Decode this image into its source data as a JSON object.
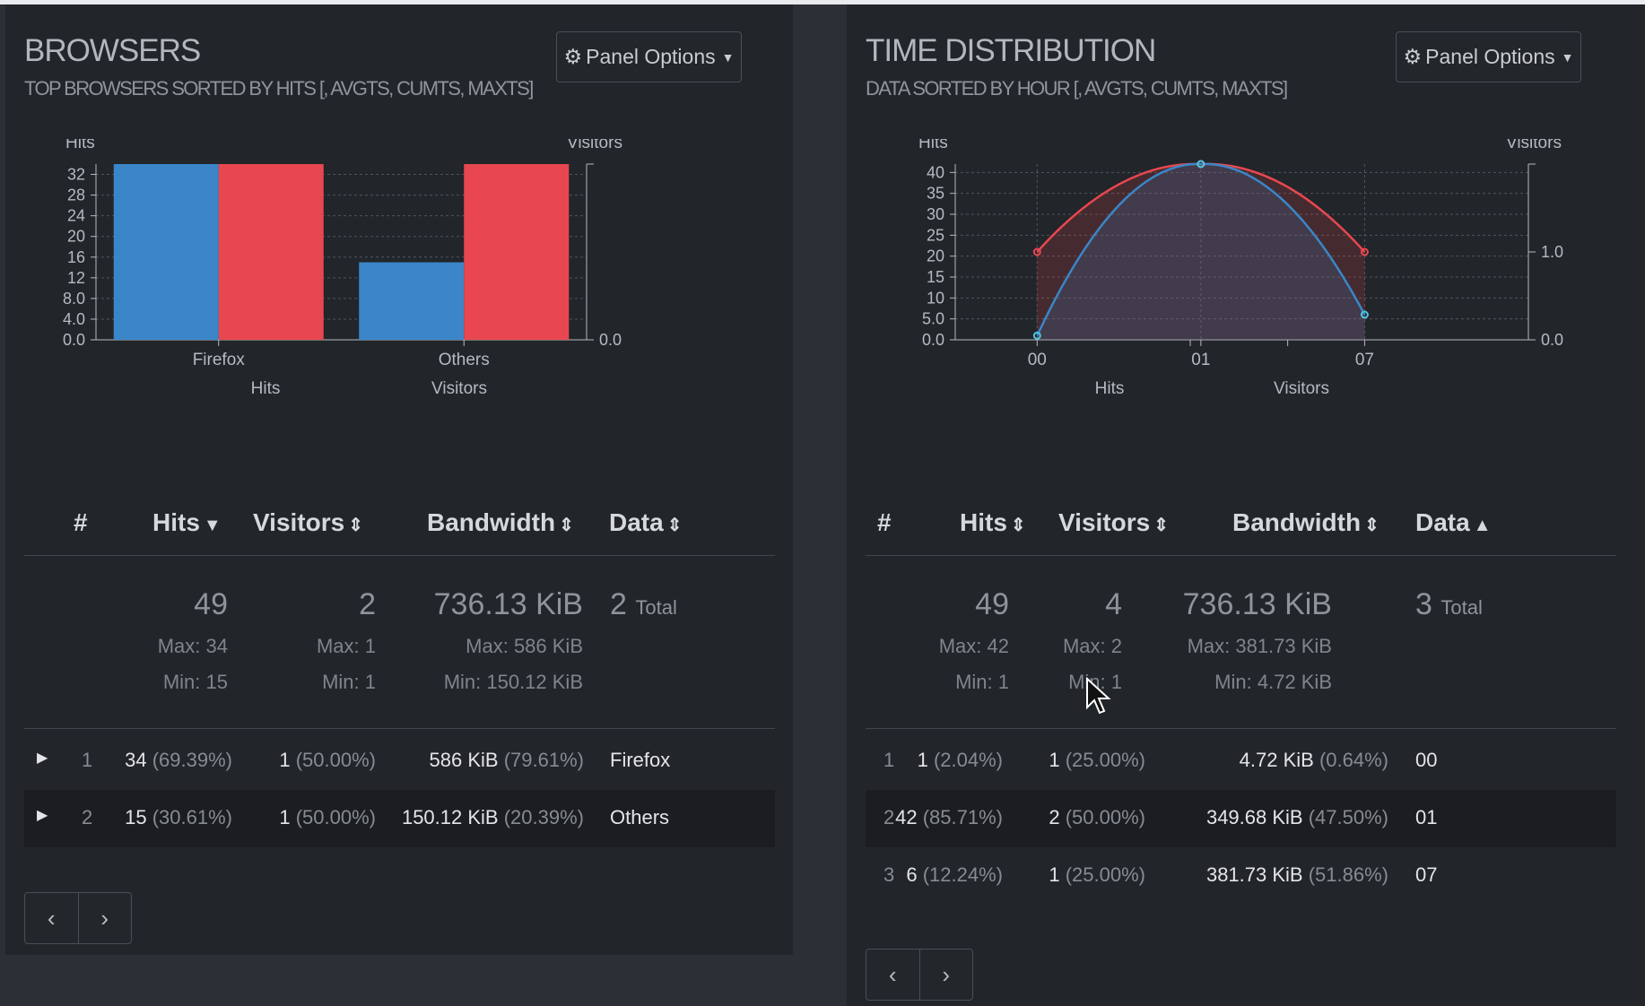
{
  "browsers": {
    "title": "BROWSERS",
    "subtitle": "TOP BROWSERS SORTED BY HITS [, AVGTS, CUMTS, MAXTS]",
    "panel_options": "Panel Options",
    "columns": {
      "num": "#",
      "hits": "Hits",
      "visitors": "Visitors",
      "bandwidth": "Bandwidth",
      "data": "Data"
    },
    "totals": {
      "hits": "49",
      "hits_max": "Max: 34",
      "hits_min": "Min: 15",
      "visitors": "2",
      "visitors_max": "Max: 1",
      "visitors_min": "Min: 1",
      "bandwidth": "736.13 KiB",
      "bandwidth_max": "Max: 586 KiB",
      "bandwidth_min": "Min: 150.12 KiB",
      "data": "2",
      "data_label": "Total"
    },
    "rows": [
      {
        "num": "1",
        "hits": "34",
        "hits_pct": "(69.39%)",
        "visitors": "1",
        "visitors_pct": "(50.00%)",
        "bandwidth": "586 KiB",
        "bandwidth_pct": "(79.61%)",
        "data": "Firefox"
      },
      {
        "num": "2",
        "hits": "15",
        "hits_pct": "(30.61%)",
        "visitors": "1",
        "visitors_pct": "(50.00%)",
        "bandwidth": "150.12 KiB",
        "bandwidth_pct": "(20.39%)",
        "data": "Others"
      }
    ]
  },
  "time": {
    "title": "TIME DISTRIBUTION",
    "subtitle": "DATA SORTED BY HOUR [, AVGTS, CUMTS, MAXTS]",
    "panel_options": "Panel Options",
    "columns": {
      "num": "#",
      "hits": "Hits",
      "visitors": "Visitors",
      "bandwidth": "Bandwidth",
      "data": "Data"
    },
    "totals": {
      "hits": "49",
      "hits_max": "Max: 42",
      "hits_min": "Min: 1",
      "visitors": "4",
      "visitors_max": "Max: 2",
      "visitors_min": "Min: 1",
      "bandwidth": "736.13 KiB",
      "bandwidth_max": "Max: 381.73 KiB",
      "bandwidth_min": "Min: 4.72 KiB",
      "data": "3",
      "data_label": "Total"
    },
    "rows": [
      {
        "num": "1",
        "hits": "1",
        "hits_pct": "(2.04%)",
        "visitors": "1",
        "visitors_pct": "(25.00%)",
        "bandwidth": "4.72 KiB",
        "bandwidth_pct": "(0.64%)",
        "data": "00"
      },
      {
        "num": "2",
        "hits": "42",
        "hits_pct": "(85.71%)",
        "visitors": "2",
        "visitors_pct": "(50.00%)",
        "bandwidth": "349.68 KiB",
        "bandwidth_pct": "(47.50%)",
        "data": "01"
      },
      {
        "num": "3",
        "hits": "6",
        "hits_pct": "(12.24%)",
        "visitors": "1",
        "visitors_pct": "(25.00%)",
        "bandwidth": "381.73 KiB",
        "bandwidth_pct": "(51.86%)",
        "data": "07"
      }
    ]
  },
  "icons": {
    "gear": "gear-icon",
    "caret": "caret-down-icon",
    "prev": "chevron-left-icon",
    "next": "chevron-right-icon"
  },
  "colors": {
    "hits": "#3a86c8",
    "visitors": "#e8474f"
  },
  "chart_data": [
    {
      "type": "bar",
      "categories": [
        "Firefox",
        "Others"
      ],
      "series": [
        {
          "name": "Hits",
          "values": [
            34,
            15
          ]
        },
        {
          "name": "Visitors",
          "values": [
            1,
            1
          ]
        }
      ],
      "ylabel": "Hits",
      "y2label": "Visitors",
      "ylim": [
        0,
        34
      ],
      "yticks": [
        "0.0",
        "4.0",
        "8.0",
        "12",
        "16",
        "20",
        "24",
        "28",
        "32"
      ],
      "y2lim": [
        0,
        1
      ],
      "y2ticks": [
        "0.0"
      ],
      "legend": "bottom"
    },
    {
      "type": "area",
      "categories": [
        "00",
        "01",
        "07"
      ],
      "series": [
        {
          "name": "Hits",
          "values": [
            1,
            42,
            6
          ]
        },
        {
          "name": "Visitors",
          "values": [
            1,
            2,
            1
          ]
        }
      ],
      "ylabel": "Hits",
      "y2label": "Visitors",
      "ylim": [
        0,
        42
      ],
      "yticks": [
        "0.0",
        "5.0",
        "10",
        "15",
        "20",
        "25",
        "30",
        "35",
        "40"
      ],
      "y2lim": [
        0,
        2
      ],
      "y2ticks": [
        "0.0",
        "1.0"
      ],
      "legend": "bottom"
    }
  ]
}
